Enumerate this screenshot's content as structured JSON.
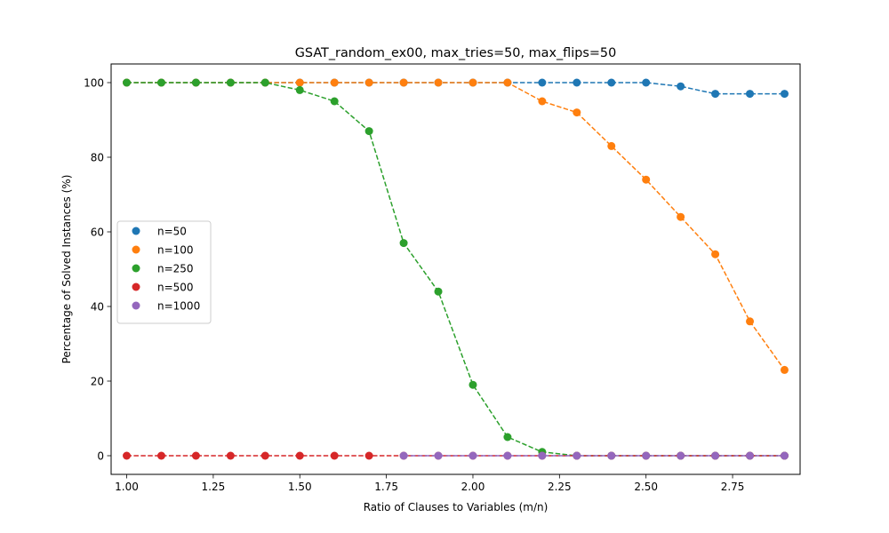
{
  "chart_data": {
    "type": "line",
    "title": "GSAT_random_ex00, max_tries=50, max_flips=50",
    "xlabel": "Ratio of Clauses to Variables (m/n)",
    "ylabel": "Percentage of Solved Instances (%)",
    "xlim": [
      0.955,
      2.945
    ],
    "ylim": [
      -5,
      105
    ],
    "xticks": [
      1.0,
      1.25,
      1.5,
      1.75,
      2.0,
      2.25,
      2.5,
      2.75
    ],
    "xtick_labels": [
      "1.00",
      "1.25",
      "1.50",
      "1.75",
      "2.00",
      "2.25",
      "2.50",
      "2.75"
    ],
    "yticks": [
      0,
      20,
      40,
      60,
      80,
      100
    ],
    "ytick_labels": [
      "0",
      "20",
      "40",
      "60",
      "80",
      "100"
    ],
    "grid": false,
    "legend_position": "center-left",
    "line_style": "dashed",
    "series": [
      {
        "name": "n=50",
        "color": "#1f77b4",
        "x": [
          1.0,
          1.1,
          1.2,
          1.3,
          1.4,
          1.5,
          1.6,
          1.7,
          1.8,
          1.9,
          2.0,
          2.1,
          2.2,
          2.3,
          2.4,
          2.5,
          2.6,
          2.7,
          2.8,
          2.9
        ],
        "y": [
          100,
          100,
          100,
          100,
          100,
          100,
          100,
          100,
          100,
          100,
          100,
          100,
          100,
          100,
          100,
          100,
          99,
          97,
          97,
          97
        ]
      },
      {
        "name": "n=100",
        "color": "#ff7f0e",
        "x": [
          1.0,
          1.1,
          1.2,
          1.3,
          1.4,
          1.5,
          1.6,
          1.7,
          1.8,
          1.9,
          2.0,
          2.1,
          2.2,
          2.3,
          2.4,
          2.5,
          2.6,
          2.7,
          2.8,
          2.9
        ],
        "y": [
          100,
          100,
          100,
          100,
          100,
          100,
          100,
          100,
          100,
          100,
          100,
          100,
          95,
          92,
          83,
          74,
          64,
          54,
          36,
          23
        ]
      },
      {
        "name": "n=250",
        "color": "#2ca02c",
        "x": [
          1.0,
          1.1,
          1.2,
          1.3,
          1.4,
          1.5,
          1.6,
          1.7,
          1.8,
          1.9,
          2.0,
          2.1,
          2.2,
          2.3,
          2.4,
          2.5,
          2.6,
          2.7,
          2.8,
          2.9
        ],
        "y": [
          100,
          100,
          100,
          100,
          100,
          98,
          95,
          87,
          57,
          44,
          19,
          5,
          1,
          0,
          0,
          0,
          0,
          0,
          0,
          0
        ]
      },
      {
        "name": "n=500",
        "color": "#d62728",
        "x": [
          1.0,
          1.1,
          1.2,
          1.3,
          1.4,
          1.5,
          1.6,
          1.7,
          1.8,
          1.9,
          2.0,
          2.1,
          2.2,
          2.3,
          2.4,
          2.5,
          2.6,
          2.7,
          2.8,
          2.9
        ],
        "y": [
          0,
          0,
          0,
          0,
          0,
          0,
          0,
          0,
          0,
          0,
          0,
          0,
          0,
          0,
          0,
          0,
          0,
          0,
          0,
          0
        ]
      },
      {
        "name": "n=1000",
        "color": "#9467bd",
        "x": [
          1.8,
          1.9,
          2.0,
          2.1,
          2.2,
          2.3,
          2.4,
          2.5,
          2.6,
          2.7,
          2.8,
          2.9
        ],
        "y": [
          0,
          0,
          0,
          0,
          0,
          0,
          0,
          0,
          0,
          0,
          0,
          0
        ]
      }
    ]
  }
}
